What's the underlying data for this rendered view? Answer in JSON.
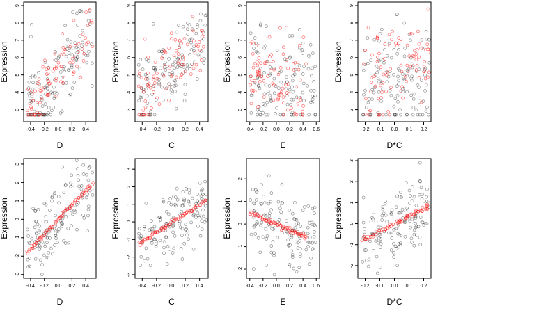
{
  "figure": {
    "point_colors": {
      "black": "#000000",
      "red": "#ff0000"
    },
    "point_shape": "open-circle"
  },
  "chart_data": [
    {
      "type": "scatter",
      "title": "",
      "xlabel": "D",
      "ylabel": "Expression",
      "xlim": [
        -0.5,
        0.55
      ],
      "ylim": [
        2.3,
        9.2
      ],
      "grid": false,
      "xticks": [
        -0.4,
        -0.2,
        0.0,
        0.2,
        0.4
      ],
      "xtick_labels": [
        "-0.4",
        "-0.2",
        "0.0",
        "0.2",
        "0.4"
      ],
      "yticks": [
        3,
        4,
        5,
        6,
        7,
        8,
        9
      ],
      "ytick_labels": [
        "3",
        "4",
        "5",
        "6",
        "7",
        "8",
        "9"
      ],
      "series": [
        {
          "color": "black",
          "kind": "observed",
          "x_min": -0.45,
          "x_max": 0.5,
          "y_center": [
            3.0,
            7.0
          ],
          "y_spread": 1.3,
          "y_min": 2.7,
          "y_max": 8.7,
          "n": 130,
          "seed": 11
        },
        {
          "color": "red",
          "kind": "fitted",
          "x_min": -0.45,
          "x_max": 0.5,
          "y_center": [
            3.0,
            7.5
          ],
          "y_spread": 1.0,
          "y_min": 2.7,
          "y_max": 8.8,
          "n": 90,
          "seed": 12
        }
      ]
    },
    {
      "type": "scatter",
      "title": "",
      "xlabel": "C",
      "ylabel": "Expression",
      "xlim": [
        -0.5,
        0.52
      ],
      "ylim": [
        2.3,
        9.2
      ],
      "grid": false,
      "xticks": [
        -0.4,
        -0.2,
        0.0,
        0.2,
        0.4
      ],
      "xtick_labels": [
        "-0.4",
        "-0.2",
        "0.0",
        "0.2",
        "0.4"
      ],
      "yticks": [
        3,
        4,
        5,
        6,
        7,
        8,
        9
      ],
      "ytick_labels": [
        "3",
        "4",
        "5",
        "6",
        "7",
        "8",
        "9"
      ],
      "series": [
        {
          "color": "black",
          "kind": "observed",
          "x_min": -0.45,
          "x_max": 0.5,
          "y_center": [
            3.8,
            7.0
          ],
          "y_spread": 1.2,
          "y_min": 2.7,
          "y_max": 8.8,
          "n": 130,
          "seed": 21
        },
        {
          "color": "red",
          "kind": "fitted",
          "x_min": -0.45,
          "x_max": 0.5,
          "y_center": [
            3.9,
            7.0
          ],
          "y_spread": 0.9,
          "y_min": 2.7,
          "y_max": 8.8,
          "n": 90,
          "seed": 22
        }
      ]
    },
    {
      "type": "scatter",
      "title": "",
      "xlabel": "E",
      "ylabel": "Expression",
      "xlim": [
        -0.45,
        0.65
      ],
      "ylim": [
        2.3,
        9.2
      ],
      "grid": false,
      "xticks": [
        -0.4,
        -0.2,
        0.0,
        0.2,
        0.4,
        0.6
      ],
      "xtick_labels": [
        "-0.4",
        "-0.2",
        "0.0",
        "0.2",
        "0.4",
        "0.6"
      ],
      "yticks": [
        3,
        4,
        5,
        6,
        7,
        8,
        9
      ],
      "ytick_labels": [
        "3",
        "4",
        "5",
        "6",
        "7",
        "8",
        "9"
      ],
      "series": [
        {
          "color": "black",
          "kind": "observed",
          "x_min": -0.4,
          "x_max": 0.6,
          "y_center": [
            4.8,
            4.2
          ],
          "y_spread": 1.5,
          "y_min": 2.7,
          "y_max": 8.6,
          "n": 130,
          "seed": 31
        },
        {
          "color": "red",
          "kind": "fitted",
          "x_min": -0.4,
          "x_max": 0.45,
          "y_center": [
            5.2,
            4.4
          ],
          "y_spread": 1.5,
          "y_min": 2.7,
          "y_max": 8.7,
          "n": 90,
          "seed": 32
        }
      ]
    },
    {
      "type": "scatter",
      "title": "",
      "xlabel": "D*C",
      "ylabel": "Expression",
      "xlim": [
        -0.25,
        0.25
      ],
      "ylim": [
        2.3,
        9.2
      ],
      "grid": false,
      "xticks": [
        -0.2,
        -0.1,
        0.0,
        0.1,
        0.2
      ],
      "xtick_labels": [
        "-0.2",
        "-0.1",
        "0.0",
        "0.1",
        "0.2"
      ],
      "yticks": [
        3,
        4,
        5,
        6,
        7,
        8,
        9
      ],
      "ytick_labels": [
        "3",
        "4",
        "5",
        "6",
        "7",
        "8",
        "9"
      ],
      "series": [
        {
          "color": "black",
          "kind": "observed",
          "x_min": -0.22,
          "x_max": 0.24,
          "y_center": [
            4.5,
            4.5
          ],
          "y_spread": 1.6,
          "y_min": 2.7,
          "y_max": 8.5,
          "n": 130,
          "seed": 41
        },
        {
          "color": "red",
          "kind": "fitted",
          "x_min": -0.22,
          "x_max": 0.24,
          "y_center": [
            4.8,
            6.0
          ],
          "y_spread": 1.5,
          "y_min": 2.7,
          "y_max": 8.8,
          "n": 90,
          "seed": 42
        }
      ]
    },
    {
      "type": "scatter",
      "title": "",
      "xlabel": "D",
      "ylabel": "Expression",
      "xlim": [
        -0.5,
        0.55
      ],
      "ylim": [
        -3.2,
        3.3
      ],
      "grid": false,
      "xticks": [
        -0.4,
        -0.2,
        0.0,
        0.2,
        0.4
      ],
      "xtick_labels": [
        "-0.4",
        "-0.2",
        "0.0",
        "0.2",
        "0.4"
      ],
      "yticks": [
        -3,
        -2,
        -1,
        0,
        1,
        2,
        3
      ],
      "ytick_labels": [
        "-3",
        "-2",
        "-1",
        "0",
        "1",
        "2",
        "3"
      ],
      "series": [
        {
          "color": "black",
          "kind": "observed",
          "x_min": -0.45,
          "x_max": 0.5,
          "y_center": [
            -1.8,
            1.9
          ],
          "y_spread": 0.9,
          "y_min": -3.0,
          "y_max": 3.2,
          "n": 140,
          "seed": 51
        },
        {
          "color": "red",
          "kind": "fitted",
          "line": [
            [
              -0.45,
              -1.8
            ],
            [
              0.5,
              1.95
            ]
          ],
          "n": 70,
          "seed": 52
        }
      ]
    },
    {
      "type": "scatter",
      "title": "",
      "xlabel": "C",
      "ylabel": "Expression",
      "xlim": [
        -0.5,
        0.52
      ],
      "ylim": [
        -3.2,
        3.6
      ],
      "grid": false,
      "xticks": [
        -0.4,
        -0.2,
        0.0,
        0.2,
        0.4
      ],
      "xtick_labels": [
        "-0.4",
        "-0.2",
        "0.0",
        "0.2",
        "0.4"
      ],
      "yticks": [
        -3,
        -2,
        -1,
        0,
        1,
        2,
        3
      ],
      "ytick_labels": [
        "-3",
        "-2",
        "-1",
        "0",
        "1",
        "2",
        "3"
      ],
      "series": [
        {
          "color": "black",
          "kind": "observed",
          "x_min": -0.45,
          "x_max": 0.5,
          "y_center": [
            -1.2,
            1.2
          ],
          "y_spread": 1.0,
          "y_min": -3.0,
          "y_max": 3.4,
          "n": 140,
          "seed": 61
        },
        {
          "color": "red",
          "kind": "fitted",
          "line": [
            [
              -0.45,
              -1.25
            ],
            [
              0.5,
              1.25
            ]
          ],
          "n": 70,
          "seed": 62
        }
      ]
    },
    {
      "type": "scatter",
      "title": "",
      "xlabel": "E",
      "ylabel": "Expression",
      "xlim": [
        -0.45,
        0.65
      ],
      "ylim": [
        -2.4,
        2.9
      ],
      "grid": false,
      "xticks": [
        -0.4,
        -0.2,
        0.0,
        0.2,
        0.4,
        0.6
      ],
      "xtick_labels": [
        "-0.4",
        "-0.2",
        "0.0",
        "0.2",
        "0.4",
        "0.6"
      ],
      "yticks": [
        -2,
        -1,
        0,
        1,
        2
      ],
      "ytick_labels": [
        "-2",
        "-1",
        "0",
        "1",
        "2"
      ],
      "series": [
        {
          "color": "black",
          "kind": "observed",
          "x_min": -0.4,
          "x_max": 0.6,
          "y_center": [
            0.4,
            -0.6
          ],
          "y_spread": 0.9,
          "y_min": -2.3,
          "y_max": 2.7,
          "n": 140,
          "seed": 71
        },
        {
          "color": "red",
          "kind": "fitted",
          "line": [
            [
              -0.4,
              0.5
            ],
            [
              0.45,
              -0.6
            ]
          ],
          "n": 70,
          "seed": 72
        }
      ]
    },
    {
      "type": "scatter",
      "title": "",
      "xlabel": "D*C",
      "ylabel": "Expression",
      "xlim": [
        -0.25,
        0.25
      ],
      "ylim": [
        -2.6,
        3.1
      ],
      "grid": false,
      "xticks": [
        -0.2,
        -0.1,
        0.0,
        0.1,
        0.2
      ],
      "xtick_labels": [
        "-0.2",
        "-0.1",
        "0.0",
        "0.1",
        "0.2"
      ],
      "yticks": [
        -2,
        -1,
        0,
        1,
        2,
        3
      ],
      "ytick_labels": [
        "-2",
        "-1",
        "0",
        "1",
        "2",
        "3"
      ],
      "series": [
        {
          "color": "black",
          "kind": "observed",
          "x_min": -0.22,
          "x_max": 0.24,
          "y_center": [
            -0.8,
            0.8
          ],
          "y_spread": 0.85,
          "y_min": -2.4,
          "y_max": 2.9,
          "n": 140,
          "seed": 81
        },
        {
          "color": "red",
          "kind": "fitted",
          "line": [
            [
              -0.22,
              -0.8
            ],
            [
              0.24,
              0.85
            ]
          ],
          "n": 70,
          "seed": 82
        }
      ]
    }
  ]
}
